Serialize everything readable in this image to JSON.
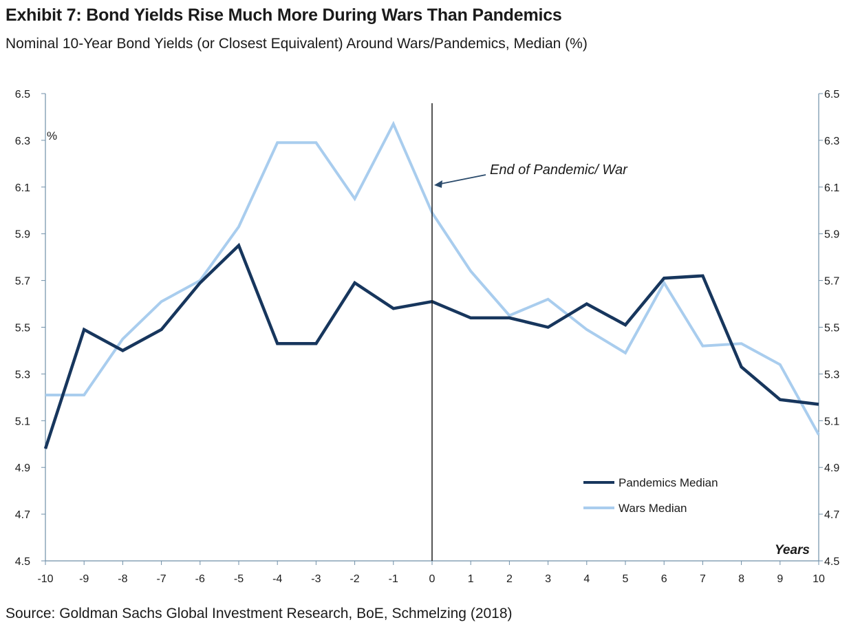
{
  "header": {
    "title": "Exhibit 7: Bond Yields Rise Much More During Wars Than Pandemics",
    "subtitle": "Nominal 10-Year Bond Yields (or Closest Equivalent) Around Wars/Pandemics, Median (%)"
  },
  "footer": {
    "source": "Source: Goldman Sachs Global Investment Research, BoE, Schmelzing (2018)"
  },
  "chart_data": {
    "type": "line",
    "x": [
      -10,
      -9,
      -8,
      -7,
      -6,
      -5,
      -4,
      -3,
      -2,
      -1,
      0,
      1,
      2,
      3,
      4,
      5,
      6,
      7,
      8,
      9,
      10
    ],
    "series": [
      {
        "name": "Pandemics Median",
        "color": "#17365d",
        "values": [
          4.98,
          5.49,
          5.4,
          5.49,
          5.69,
          5.85,
          5.43,
          5.43,
          5.69,
          5.58,
          5.61,
          5.54,
          5.54,
          5.5,
          5.6,
          5.51,
          5.71,
          5.72,
          5.33,
          5.19,
          5.17
        ]
      },
      {
        "name": "Wars Median",
        "color": "#a9cdee",
        "values": [
          5.21,
          5.21,
          5.45,
          5.61,
          5.7,
          5.93,
          6.29,
          6.29,
          6.05,
          6.37,
          5.99,
          5.74,
          5.55,
          5.62,
          5.49,
          5.39,
          5.69,
          5.42,
          5.43,
          5.34,
          5.04
        ]
      }
    ],
    "ylim": [
      4.5,
      6.5
    ],
    "yticks": [
      "4.5",
      "4.7",
      "4.9",
      "5.1",
      "5.3",
      "5.5",
      "5.7",
      "5.9",
      "6.1",
      "6.3",
      "6.5"
    ],
    "xticks": [
      "-10",
      "-9",
      "-8",
      "-7",
      "-6",
      "-5",
      "-4",
      "-3",
      "-2",
      "-1",
      "0",
      "1",
      "2",
      "3",
      "4",
      "5",
      "6",
      "7",
      "8",
      "9",
      "10"
    ],
    "ylabel": "%",
    "xlabel": "Years",
    "annotation": "End of Pandemic/ War",
    "vertical_line_x": 0,
    "legend_position": "bottom-right",
    "grid": false,
    "dual_y_axis": true
  }
}
